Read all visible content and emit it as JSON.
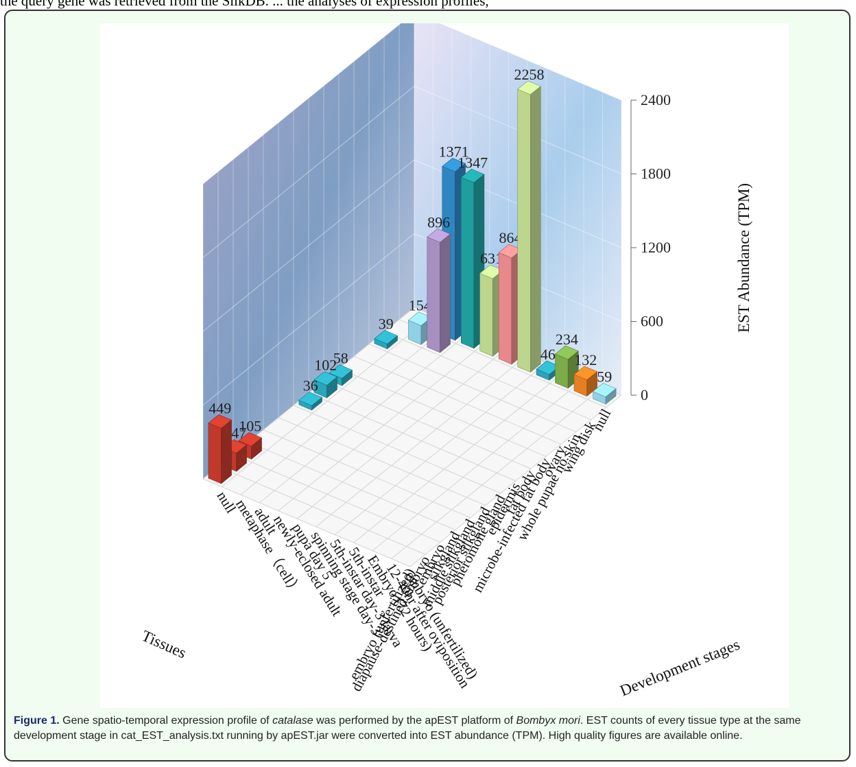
{
  "top_text": "the query gene was retrieved from the SilkDB. ... the analyses of expression profiles,",
  "figure": {
    "caption_label": "Figure 1.",
    "caption_parts": {
      "p1": " Gene spatio-temporal expression profile of ",
      "gene": "catalase",
      "p2": " was performed by the apEST platform of ",
      "species": "Bombyx mori",
      "p3": ". EST counts of every tissue type at the same development stage in cat_EST_analysis.txt running by apEST.jar were converted into EST abundance (TPM). High quality figures are available online."
    }
  },
  "chart_data": {
    "type": "bar3d",
    "zlabel": "EST Abundance (TPM)",
    "zlim": [
      0,
      2400
    ],
    "zticks": [
      "0",
      "600",
      "1200",
      "1800",
      "2400"
    ],
    "xlabel": "Tissues",
    "ylabel": "Development stages",
    "tissues": [
      "embryo (unfertilized)",
      "diapause-destined embryo",
      "embryo",
      "silkgland",
      "middle silkgland",
      "posterior silkgland",
      "pheromone gland",
      "epidermis",
      "fat body",
      "microbe-infected fat body",
      "ovary",
      "whole pupae no skin",
      "wing disk",
      "null"
    ],
    "stages": [
      "embryo (unfertilized)",
      "12-40hr after oviposition",
      "Embryo (72 hours)",
      "5th-instar",
      "5th-instar day-3 larva",
      "spinning stage day-3",
      "pupa day 5",
      "newly-eclosed adult",
      "adult",
      "metaphase（cell）",
      "null"
    ],
    "bars": [
      {
        "tissue": "embryo (unfertilized)",
        "stage": "null",
        "value": 449,
        "label": "449",
        "color": "#c0392b"
      },
      {
        "tissue": "diapause-destined embryo",
        "stage": "null",
        "value": 147,
        "label": "147",
        "color": "#c0392b"
      },
      {
        "tissue": "embryo",
        "stage": "null",
        "value": 105,
        "label": "105",
        "color": "#c0392b"
      },
      {
        "tissue": "pheromone gland",
        "stage": "null",
        "value": 36,
        "label": "36",
        "color": "#2aa5b9"
      },
      {
        "tissue": "epidermis",
        "stage": "null",
        "value": 102,
        "label": "102",
        "color": "#2aa5b9"
      },
      {
        "tissue": "fat body",
        "stage": "null",
        "value": 58,
        "label": "58",
        "color": "#2aa5b9"
      },
      {
        "tissue": "whole pupae no skin",
        "stage": "null",
        "value": 39,
        "label": "39",
        "color": "#2aa5b9"
      },
      {
        "tissue": "null",
        "stage": "adult",
        "value": 1371,
        "label": "1371",
        "color": "#2e86c1"
      },
      {
        "tissue": "null",
        "stage": "newly-eclosed adult",
        "value": 1347,
        "label": "1347",
        "color": "#1f9e9e"
      },
      {
        "tissue": "null",
        "stage": "5th-instar day-3 larva",
        "value": 2258,
        "label": "2258",
        "color": "#bdd68e"
      },
      {
        "tissue": "null",
        "stage": "spinning stage day-3",
        "value": 864,
        "label": "864",
        "color": "#e8888a"
      },
      {
        "tissue": "null",
        "stage": "pupa day 5",
        "value": 631,
        "label": "631",
        "color": "#bdd68e"
      },
      {
        "tissue": "null",
        "stage": "metaphase（cell）",
        "value": 39,
        "label": "39",
        "color": "#8fd0e6"
      },
      {
        "tissue": "null",
        "stage": "12-40hr after oviposition",
        "value": 132,
        "label": "132",
        "color": "#e67e22"
      },
      {
        "tissue": "null",
        "stage": "Embryo (72 hours)",
        "value": 234,
        "label": "234",
        "color": "#7cab4a"
      },
      {
        "tissue": "null",
        "stage": "5th-instar",
        "value": 46,
        "label": "46",
        "color": "#2aa5b9"
      },
      {
        "tissue": "null",
        "stage": "embryo (unfertilized)",
        "value": 59,
        "label": "59",
        "color": "#8fd0e6"
      },
      {
        "tissue": "wing disk",
        "stage": "adult",
        "value": 896,
        "label": "896",
        "color": "#a78fc0"
      },
      {
        "tissue": "wing disk",
        "stage": "metaphase（cell）",
        "value": 154,
        "label": "154",
        "color": "#8fd0e6"
      }
    ]
  }
}
